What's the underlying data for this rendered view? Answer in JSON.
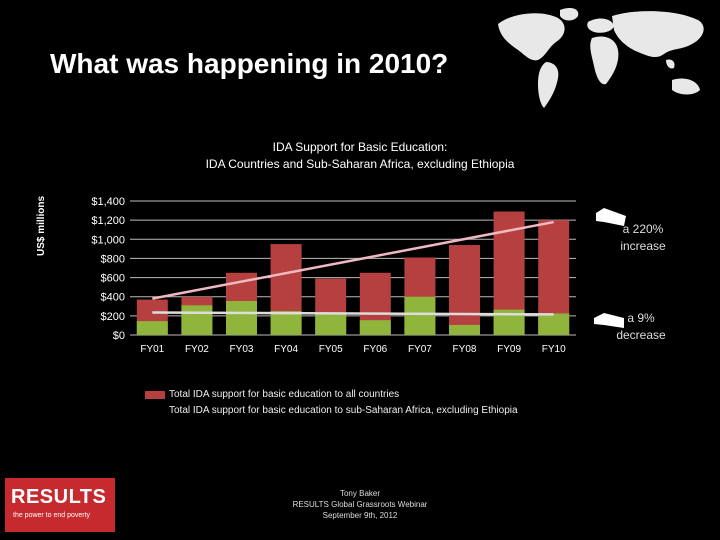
{
  "slide": {
    "title": "What was happening in 2010?",
    "map_icon": "world-map-icon"
  },
  "chart_data": {
    "type": "bar",
    "title": "IDA Support for Basic Education:",
    "subtitle": "IDA Countries and Sub-Saharan Africa, excluding Ethiopia",
    "ylabel": "US$ millions",
    "xlabel": "",
    "ylim": [
      0,
      1400
    ],
    "yticks": [
      "$0",
      "$200",
      "$400",
      "$600",
      "$800",
      "$1,000",
      "$1,200",
      "$1,400"
    ],
    "ytick_values": [
      0,
      200,
      400,
      600,
      800,
      1000,
      1200,
      1400
    ],
    "categories": [
      "FY01",
      "FY02",
      "FY03",
      "FY04",
      "FY05",
      "FY06",
      "FY07",
      "FY08",
      "FY09",
      "FY10"
    ],
    "series": [
      {
        "name": "Total IDA support for basic education to all countries",
        "color": "#b5403f",
        "values": [
          370,
          400,
          650,
          950,
          590,
          650,
          810,
          940,
          1290,
          1200
        ]
      },
      {
        "name": "Total IDA support for basic education to sub-Saharan Africa, excluding Ethiopia",
        "color": "#8fb53c",
        "values": [
          145,
          310,
          355,
          250,
          230,
          155,
          400,
          105,
          265,
          225
        ]
      }
    ],
    "trend_total": {
      "color": "#f0b8c0",
      "from": 380,
      "to": 1180
    },
    "trend_ssa": {
      "color": "#dddddd",
      "from": 235,
      "to": 215
    },
    "grid": true,
    "legend_position": "bottom"
  },
  "annotations": {
    "increase": "a 220% increase",
    "decrease": "a 9% decrease"
  },
  "footer": {
    "logo_line1": "RESULTS",
    "logo_line2": "the power to end poverty",
    "credit_line1": "Tony Baker",
    "credit_line2": "RESULTS Global Grassroots Webinar",
    "credit_line3": "September 9th, 2012"
  }
}
